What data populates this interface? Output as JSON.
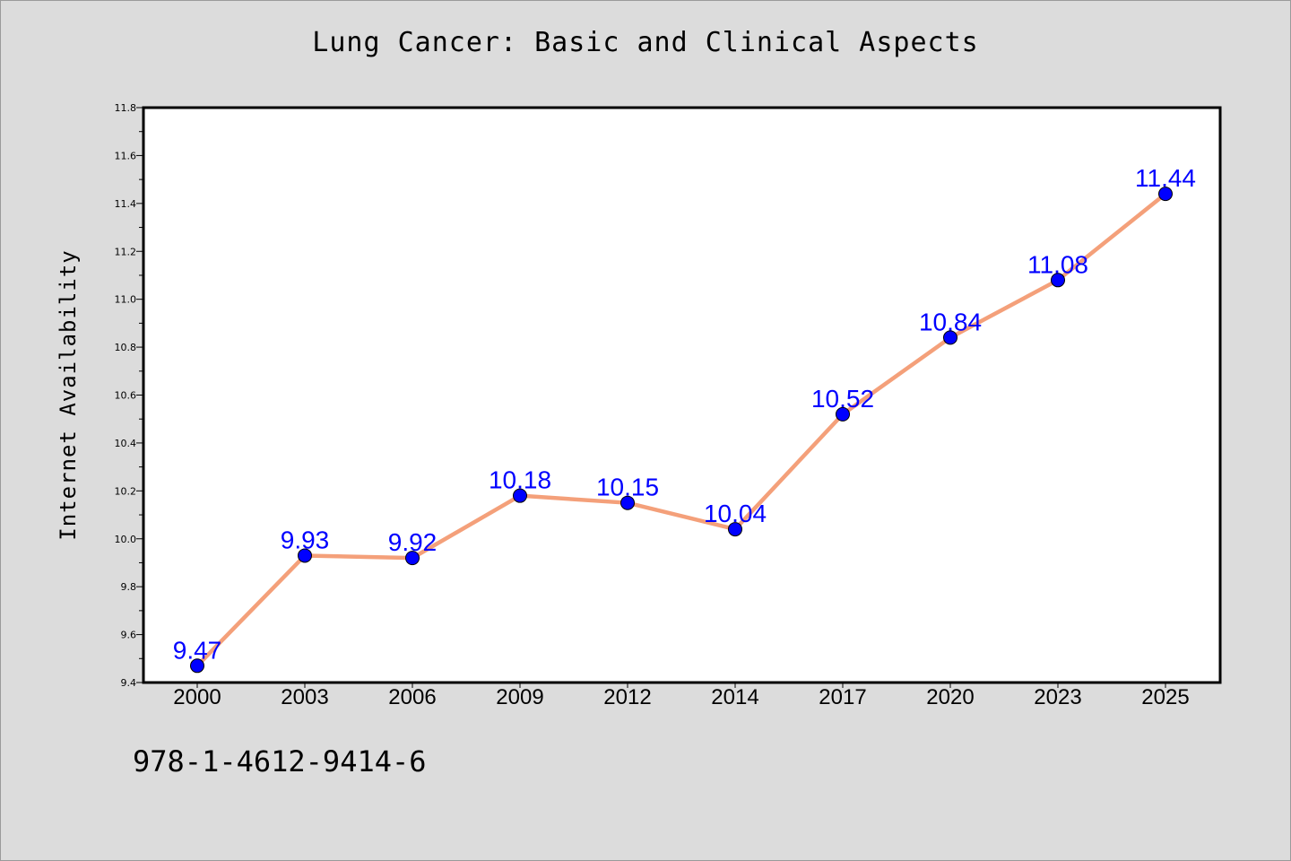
{
  "colors": {
    "background": "#dcdcdc",
    "plot_background": "#ffffff",
    "line": "#f4a07a",
    "marker": "#0000ff",
    "data_label": "#0000ff"
  },
  "chart_data": {
    "type": "line",
    "title": "Lung Cancer: Basic and Clinical Aspects",
    "xlabel": "",
    "ylabel": "Internet Availability",
    "categories": [
      "2000",
      "2003",
      "2006",
      "2009",
      "2012",
      "2014",
      "2017",
      "2020",
      "2023",
      "2025"
    ],
    "series": [
      {
        "values": [
          9.47,
          9.93,
          9.92,
          10.18,
          10.15,
          10.04,
          10.52,
          10.84,
          11.08,
          11.44
        ],
        "labels": [
          "9.47",
          "9.93",
          "9.92",
          "10.18",
          "10.15",
          "10.04",
          "10.52",
          "10.84",
          "11.08",
          "11.44"
        ]
      }
    ],
    "ylim": [
      9.4,
      11.8
    ],
    "yticks": [
      "9.4",
      "9.6",
      "9.8",
      "10.0",
      "10.2",
      "10.4",
      "10.6",
      "10.8",
      "11.0",
      "11.2",
      "11.4",
      "11.6",
      "11.8"
    ],
    "grid": false,
    "legend": "none"
  },
  "footer": {
    "isbn": "978-1-4612-9414-6"
  }
}
